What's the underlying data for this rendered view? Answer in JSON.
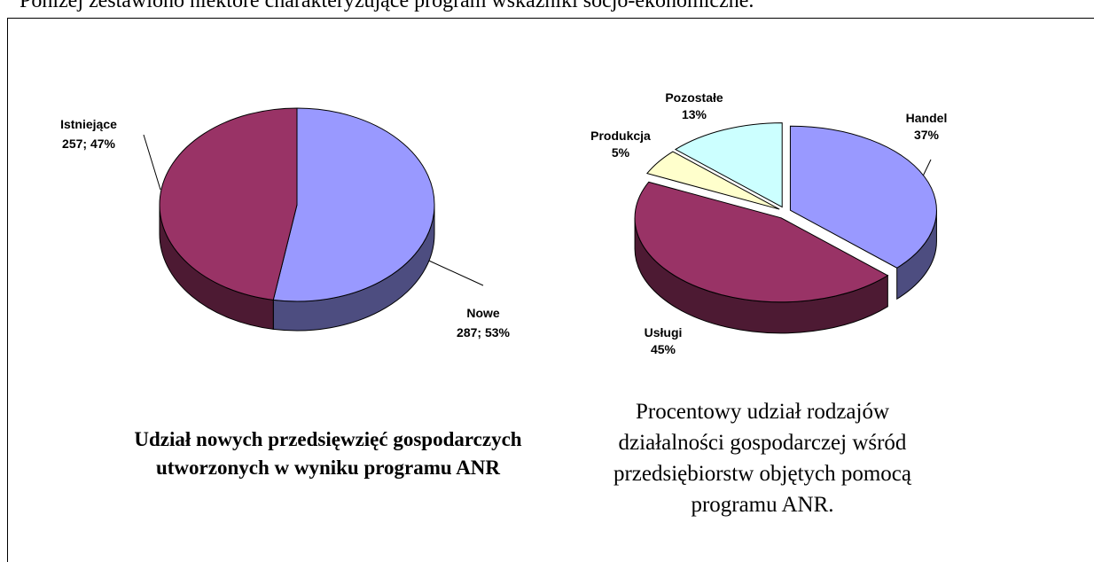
{
  "intro": "Poniżej zestawiono niektóre charakteryzujące program wskaźniki socjo-ekonomiczne.",
  "chart_data": [
    {
      "type": "pie",
      "title": "Udział nowych  przedsięwzięć gospodarczych utworzonych w wyniku programu ANR",
      "categories": [
        "Nowe",
        "Istniejące"
      ],
      "values": [
        287,
        257
      ],
      "value_labels": [
        "287; 53%",
        "257; 47%"
      ],
      "colors": [
        "#9999ff",
        "#993366"
      ]
    },
    {
      "type": "pie",
      "title": "Procentowy udział rodzajów działalności gospodarczej wśród przedsiębiorstw objętych pomocą programu ANR.",
      "categories": [
        "Handel",
        "Usługi",
        "Produkcja",
        "Pozostałe"
      ],
      "values": [
        37,
        45,
        5,
        13
      ],
      "value_labels": [
        "37%",
        "45%",
        "5%",
        "13%"
      ],
      "colors": [
        "#9999ff",
        "#993366",
        "#ffffcc",
        "#ccffff"
      ]
    }
  ]
}
